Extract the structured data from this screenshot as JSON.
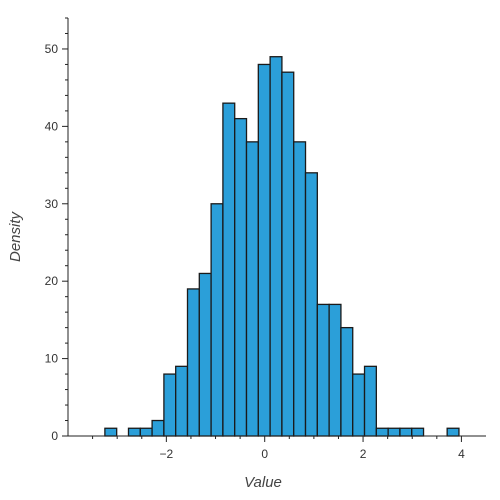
{
  "chart_data": {
    "type": "bar",
    "title": "",
    "xlabel": "Value",
    "ylabel": "Density",
    "xlim": [
      -4.0,
      4.5
    ],
    "ylim": [
      0,
      54
    ],
    "x_ticks": [
      -2,
      0,
      2,
      4
    ],
    "x_tick_labels": [
      "−2",
      "0",
      "2",
      "4"
    ],
    "y_ticks": [
      0,
      10,
      20,
      30,
      40,
      50
    ],
    "y_tick_labels": [
      "0",
      "10",
      "20",
      "30",
      "40",
      "50"
    ],
    "bin_width": 0.24,
    "bin_edges_start": -3.25,
    "values": [
      1,
      0,
      1,
      1,
      2,
      8,
      9,
      19,
      21,
      30,
      43,
      41,
      38,
      48,
      49,
      47,
      38,
      34,
      17,
      17,
      14,
      8,
      9,
      1,
      1,
      1,
      1,
      0,
      0,
      1
    ],
    "bar_color": "#2b9fd9",
    "bar_edge_color": "#1a1a1a",
    "grid": false,
    "legend": "none"
  }
}
